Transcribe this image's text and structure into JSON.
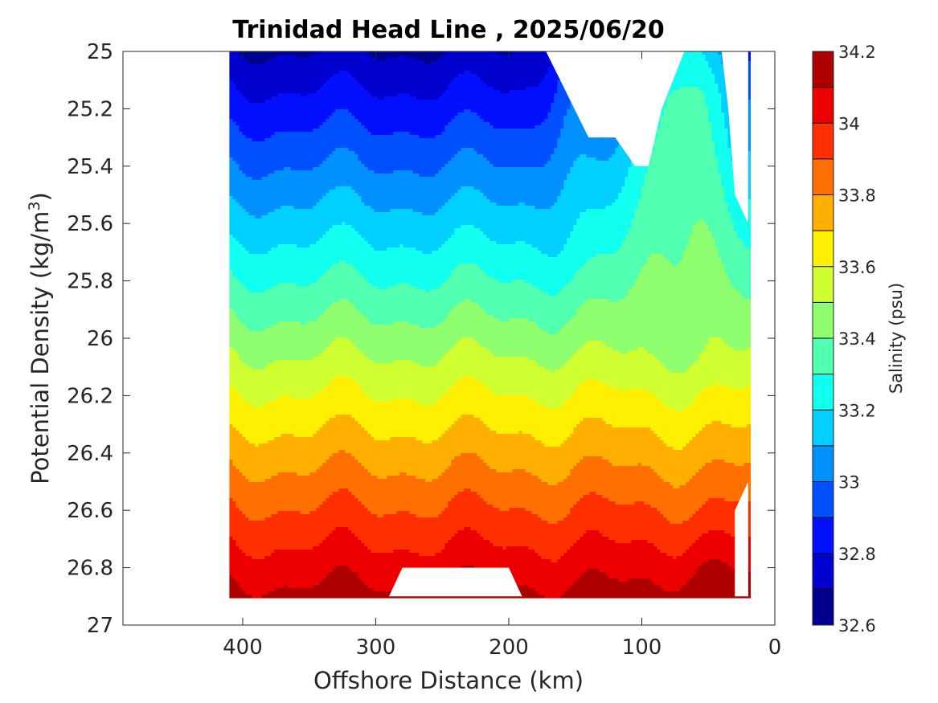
{
  "chart_data": {
    "type": "heatmap",
    "subtype": "filled-contour",
    "title": "Trinidad Head Line , 2025/06/20",
    "xlabel": "Offshore Distance (km)",
    "ylabel_main": "Potential Density (kg/m",
    "ylabel_sup": "3",
    "ylabel_close": ")",
    "x_reversed": true,
    "y_reversed": true,
    "xlim": [
      490,
      0
    ],
    "ylim": [
      25,
      27
    ],
    "xticks": [
      400,
      300,
      200,
      100,
      0
    ],
    "xtick_labels": [
      "400",
      "300",
      "200",
      "100",
      "0"
    ],
    "yticks": [
      25,
      25.2,
      25.4,
      25.6,
      25.8,
      26,
      26.2,
      26.4,
      26.6,
      26.8,
      27
    ],
    "ytick_labels": [
      "25",
      "25.2",
      "25.4",
      "25.6",
      "25.8",
      "26",
      "26.2",
      "26.4",
      "26.6",
      "26.8",
      "27"
    ],
    "colorbar": {
      "label": "Salinity (psu)",
      "range": [
        32.6,
        34.2
      ],
      "levels": [
        32.6,
        32.7,
        32.8,
        32.9,
        33.0,
        33.1,
        33.2,
        33.3,
        33.4,
        33.5,
        33.6,
        33.7,
        33.8,
        33.9,
        34.0,
        34.1,
        34.2
      ],
      "colors": [
        "#00008f",
        "#0000cf",
        "#0010ff",
        "#0050ff",
        "#0090ff",
        "#00d0ff",
        "#10ffef",
        "#50ffaf",
        "#90ff6f",
        "#cfff30",
        "#ffef00",
        "#ffaf00",
        "#ff7000",
        "#ff3000",
        "#ef0000",
        "#af0000"
      ],
      "ticks": [
        32.6,
        32.8,
        33.0,
        33.2,
        33.4,
        33.6,
        33.8,
        34.0,
        34.2
      ],
      "tick_labels": [
        "32.6",
        "32.8",
        "33",
        "33.2",
        "33.4",
        "33.6",
        "33.8",
        "34",
        "34.2"
      ]
    },
    "data_extent": {
      "x_range_km": [
        410,
        20
      ],
      "density_range": [
        25,
        26.9
      ],
      "description_note": "Salinity generally increases with potential density; fresher water near the surface offshore, saltier deep nearshore."
    },
    "band_mean_levels": [
      {
        "density": 25.0,
        "salinity": 32.7
      },
      {
        "density": 25.2,
        "salinity": 32.85
      },
      {
        "density": 25.4,
        "salinity": 33.0
      },
      {
        "density": 25.6,
        "salinity": 33.2
      },
      {
        "density": 25.8,
        "salinity": 33.35
      },
      {
        "density": 26.0,
        "salinity": 33.5
      },
      {
        "density": 26.2,
        "salinity": 33.65
      },
      {
        "density": 26.4,
        "salinity": 33.8
      },
      {
        "density": 26.6,
        "salinity": 33.95
      },
      {
        "density": 26.8,
        "salinity": 34.1
      }
    ]
  }
}
